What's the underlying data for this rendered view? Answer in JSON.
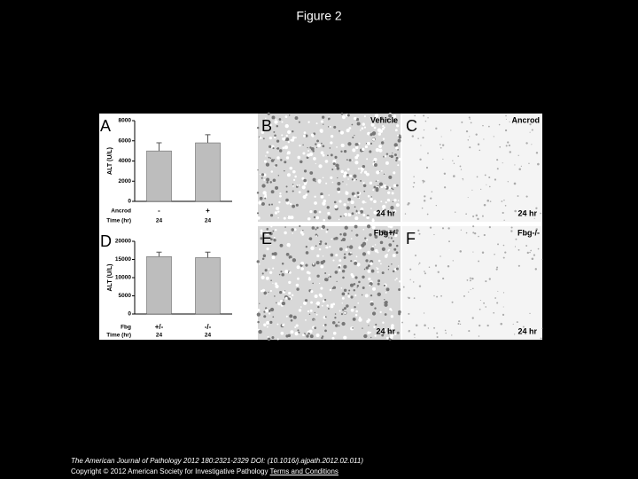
{
  "title": "Figure 2",
  "chart_data": [
    {
      "type": "bar",
      "panel": "A",
      "y_label": "ALT (U/L)",
      "row_label": "Ancrod",
      "time_label": "Time (hr)",
      "categories": [
        "-",
        "+"
      ],
      "times": [
        "24",
        "24"
      ],
      "values": [
        5000,
        5800
      ],
      "errors": [
        800,
        800
      ],
      "color": "#bdbdbd",
      "ylim": [
        0,
        8000
      ],
      "yticks": [
        0,
        2000,
        4000,
        6000,
        8000
      ]
    },
    {
      "type": "bar",
      "panel": "D",
      "y_label": "ALT (U/L)",
      "row_label": "Fbg",
      "time_label": "Time (hr)",
      "categories": [
        "+/-",
        "-/-"
      ],
      "times": [
        "24",
        "24"
      ],
      "values": [
        15800,
        15500
      ],
      "errors": [
        1200,
        1500
      ],
      "color": "#bdbdbd",
      "ylim": [
        0,
        20000
      ],
      "yticks": [
        0,
        5000,
        10000,
        15000,
        20000
      ]
    }
  ],
  "panels": [
    {
      "letter": "B",
      "label": "Vehicle",
      "time": "24 hr"
    },
    {
      "letter": "C",
      "label": "Ancrod",
      "time": "24 hr"
    },
    {
      "letter": "E",
      "label": "Fbg+/-",
      "time": "24 hr"
    },
    {
      "letter": "F",
      "label": "Fbg-/-",
      "time": "24 hr"
    }
  ],
  "footer": {
    "citation": "The American Journal of Pathology 2012 180:2321-2329 DOI: (10.1016/j.ajpath.2012.02.011)",
    "copyright": "Copyright © 2012 American Society for Investigative Pathology",
    "link": "Terms and Conditions"
  }
}
